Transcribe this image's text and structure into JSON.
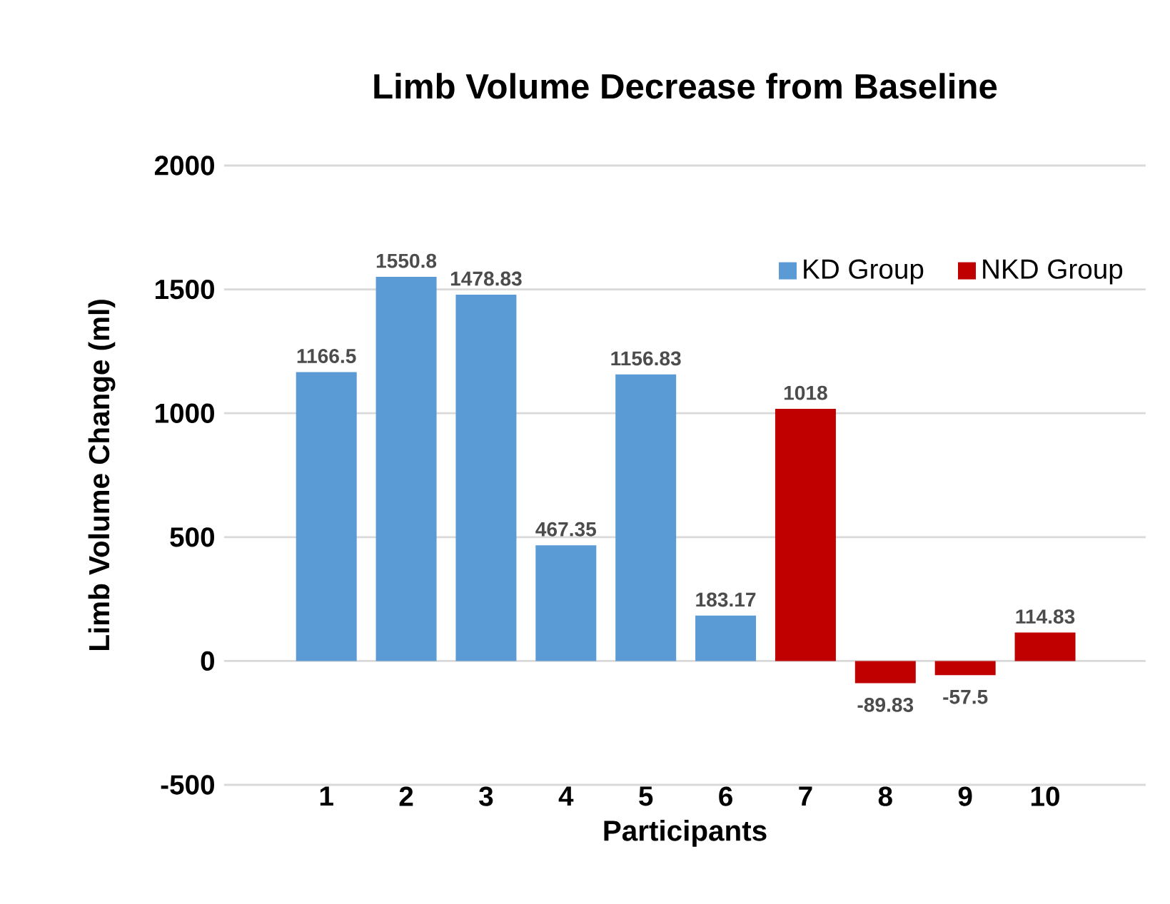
{
  "chart_data": {
    "type": "bar",
    "title": "Limb Volume Decrease from Baseline",
    "xlabel": "Participants",
    "ylabel": "Limb Volume Change (ml)",
    "categories": [
      "1",
      "2",
      "3",
      "4",
      "5",
      "6",
      "7",
      "8",
      "9",
      "10"
    ],
    "series": [
      {
        "name": "KD Group",
        "color": "#5b9bd5",
        "values": [
          1166.5,
          1550.8,
          1478.83,
          467.35,
          1156.83,
          183.17,
          null,
          null,
          null,
          null
        ]
      },
      {
        "name": "NKD Group",
        "color": "#c00000",
        "values": [
          null,
          null,
          null,
          null,
          null,
          null,
          1018,
          -89.83,
          -57.5,
          114.83
        ]
      }
    ],
    "ylim": [
      -500,
      2000
    ],
    "yticks": [
      -500,
      0,
      500,
      1000,
      1500,
      2000
    ],
    "grid": "y",
    "legend": "top right",
    "data_labels": true
  }
}
